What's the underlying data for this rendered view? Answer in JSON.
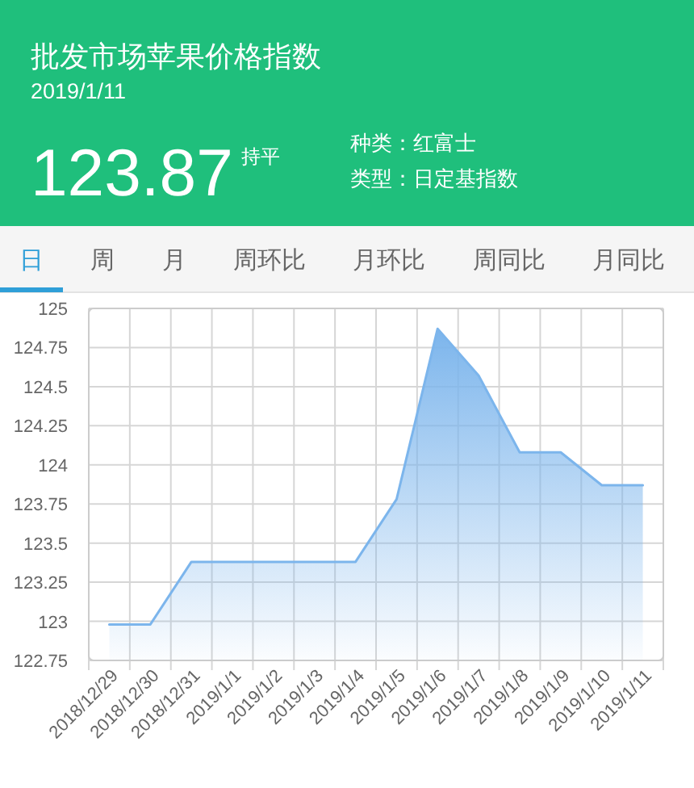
{
  "chart_data": {
    "type": "area",
    "title": "批发市场苹果价格指数",
    "subtitle": "2019/1/11",
    "annotations": [
      "123.87",
      "持平",
      "种类：红富士",
      "类型：日定基指数",
      "日",
      "周",
      "月",
      "周环比",
      "月环比",
      "周同比",
      "月同比"
    ],
    "categories": [
      "2018/12/29",
      "2018/12/30",
      "2018/12/31",
      "2019/1/1",
      "2019/1/2",
      "2019/1/3",
      "2019/1/4",
      "2019/1/5",
      "2019/1/6",
      "2019/1/7",
      "2019/1/8",
      "2019/1/9",
      "2019/1/10",
      "2019/1/11"
    ],
    "series": [
      {
        "color": "#7cb5ec",
        "values": [
          122.98,
          122.98,
          123.38,
          123.38,
          123.38,
          123.38,
          123.38,
          123.78,
          124.87,
          124.57,
          124.08,
          124.08,
          123.87,
          123.87
        ]
      }
    ],
    "ylim": [
      122.75,
      125
    ],
    "yticks": [
      122.75,
      123,
      123.25,
      123.5,
      123.75,
      124,
      124.25,
      124.5,
      124.75,
      125
    ],
    "grid": true,
    "marker": "none",
    "line_style": "solid"
  }
}
